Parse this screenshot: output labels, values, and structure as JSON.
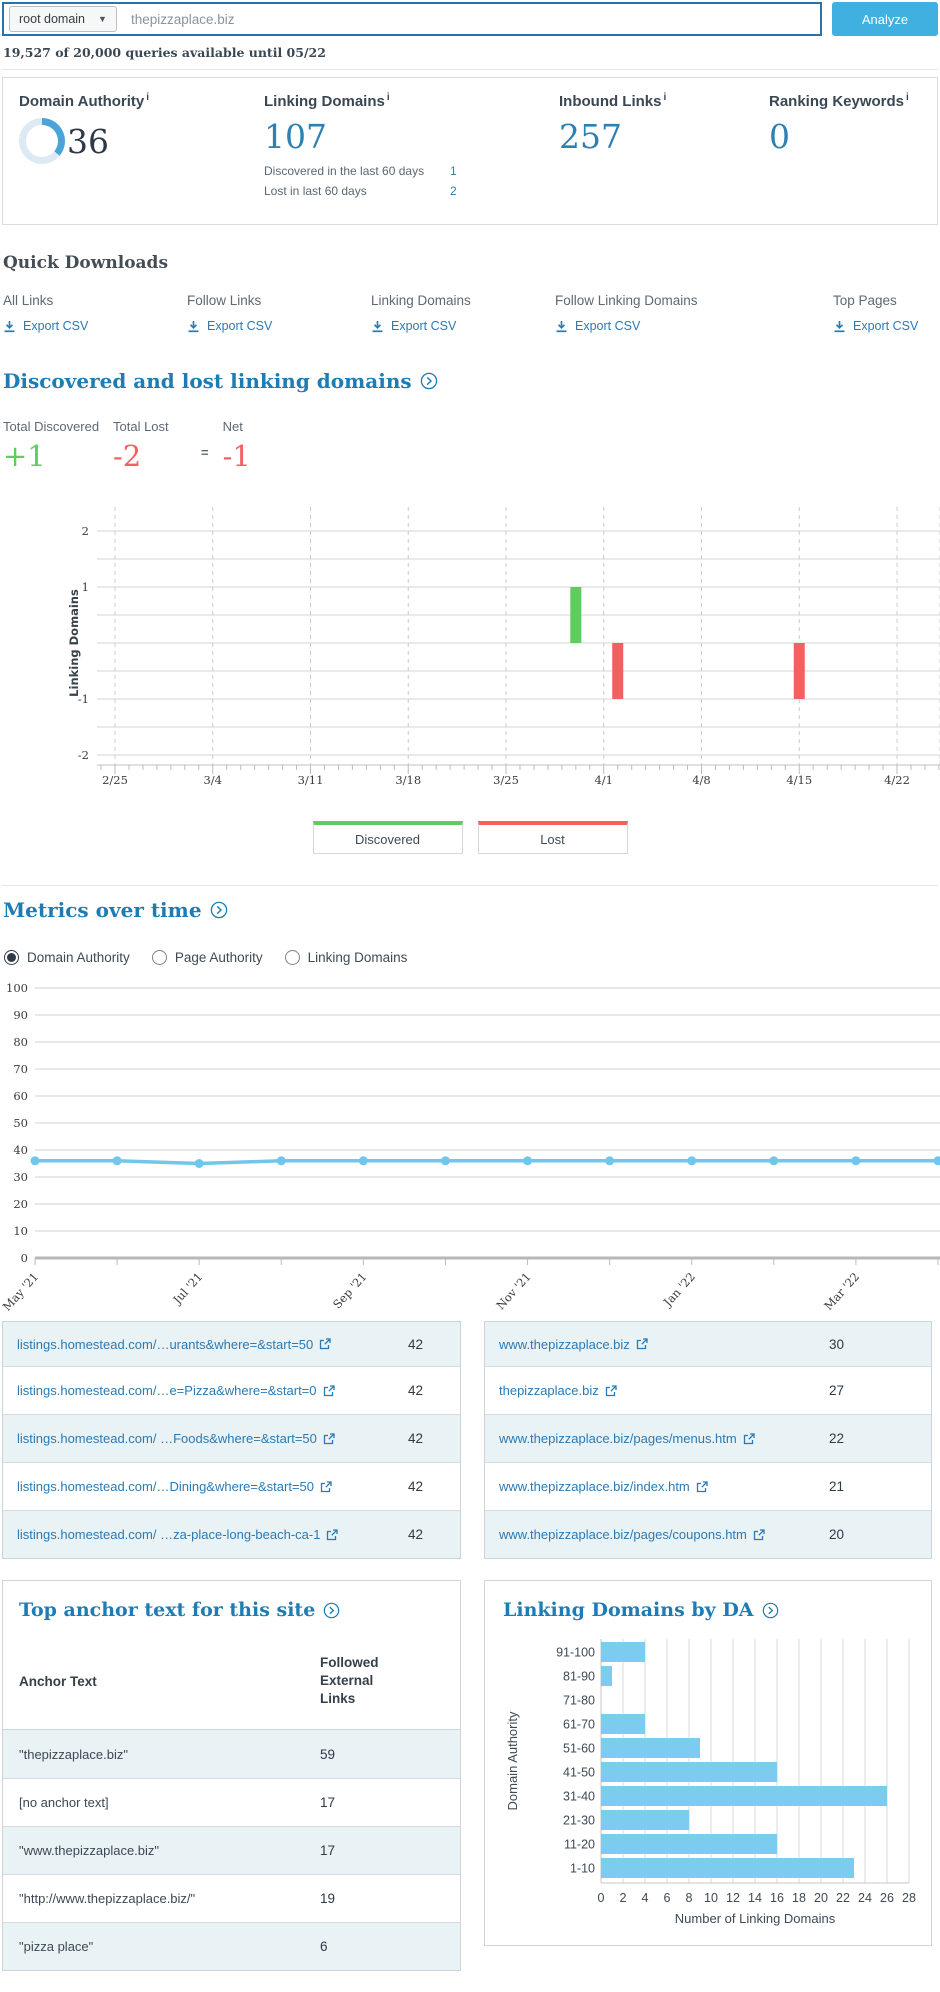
{
  "search": {
    "scope_label": "root domain",
    "query": "thepizzaplace.biz",
    "analyze_label": "Analyze",
    "queries_note": "19,527 of 20,000 queries available until 05/22"
  },
  "metrics": {
    "domain_authority": {
      "label": "Domain Authority",
      "info": "i",
      "value": "36"
    },
    "linking_domains": {
      "label": "Linking Domains",
      "info": "i",
      "value": "107",
      "sub_rows": [
        {
          "label": "Discovered in the last 60 days",
          "value": "1"
        },
        {
          "label": "Lost in last 60 days",
          "value": "2"
        }
      ]
    },
    "inbound_links": {
      "label": "Inbound Links",
      "info": "i",
      "value": "257"
    },
    "ranking_keywords": {
      "label": "Ranking Keywords",
      "info": "i",
      "value": "0"
    }
  },
  "quick_downloads": {
    "title": "Quick Downloads",
    "export_label": "Export CSV",
    "items": [
      {
        "label": "All Links"
      },
      {
        "label": "Follow Links"
      },
      {
        "label": "Linking Domains"
      },
      {
        "label": "Follow Linking Domains"
      },
      {
        "label": "Top Pages"
      }
    ]
  },
  "discovered_lost": {
    "title": "Discovered and lost linking domains",
    "stats": {
      "discovered": {
        "label": "Total Discovered",
        "value": "+1"
      },
      "lost": {
        "label": "Total Lost",
        "value": "-2"
      },
      "equals": "=",
      "net": {
        "label": "Net",
        "value": "-1"
      }
    },
    "legend": {
      "discovered": "Discovered",
      "lost": "Lost"
    }
  },
  "metrics_over_time": {
    "title": "Metrics over time",
    "radios": [
      {
        "label": "Domain Authority",
        "selected": true
      },
      {
        "label": "Page Authority",
        "selected": false
      },
      {
        "label": "Linking Domains",
        "selected": false
      }
    ]
  },
  "link_tables": {
    "left_rows": [
      {
        "url": "listings.homestead.com/…urants&where=&start=50",
        "value": "42"
      },
      {
        "url": "listings.homestead.com/…e=Pizza&where=&start=0",
        "value": "42"
      },
      {
        "url": "listings.homestead.com/ …Foods&where=&start=50",
        "value": "42"
      },
      {
        "url": "listings.homestead.com/…Dining&where=&start=50",
        "value": "42"
      },
      {
        "url": "listings.homestead.com/ …za-place-long-beach-ca-1",
        "value": "42"
      }
    ],
    "right_rows": [
      {
        "url": "www.thepizzaplace.biz",
        "value": "30"
      },
      {
        "url": "thepizzaplace.biz",
        "value": "27"
      },
      {
        "url": "www.thepizzaplace.biz/pages/menus.htm",
        "value": "22"
      },
      {
        "url": "www.thepizzaplace.biz/index.htm",
        "value": "21"
      },
      {
        "url": "www.thepizzaplace.biz/pages/coupons.htm",
        "value": "20"
      }
    ]
  },
  "anchor_text": {
    "title": "Top anchor text for this site",
    "col1": "Anchor Text",
    "col2": "Followed External Links",
    "rows": [
      {
        "text": "\"thepizzaplace.biz\"",
        "value": "59"
      },
      {
        "text": "[no anchor text]",
        "value": "17"
      },
      {
        "text": "\"www.thepizzaplace.biz\"",
        "value": "17"
      },
      {
        "text": "\"http://www.thepizzaplace.biz/\"",
        "value": "19"
      },
      {
        "text": "\"pizza place\"",
        "value": "6"
      }
    ]
  },
  "da_section": {
    "title": "Linking Domains by DA"
  },
  "colors": {
    "accent_blue": "#1d7cb4",
    "link_blue": "#2a7ab5",
    "metric_blue": "#2c80b4",
    "analyze_bg": "#3fb0e0",
    "search_border": "#2d71a6",
    "discovered_green": "#5ecc5e",
    "lost_red": "#f26060",
    "line_blue": "#70c6eb",
    "da_bar_blue": "#7bccee"
  },
  "chart_data": [
    {
      "id": "discovered-lost",
      "type": "bar",
      "title": "Discovered and lost linking domains",
      "ylabel": "Linking Domains",
      "ylim": [
        -2,
        2
      ],
      "grid": true,
      "x_tick_labels": [
        "2/25",
        "3/4",
        "3/11",
        "3/18",
        "3/25",
        "4/1",
        "4/8",
        "4/15",
        "4/22"
      ],
      "series": [
        {
          "name": "Discovered",
          "color": "#5ecc5e",
          "points": [
            {
              "date": "3/30",
              "day_offset": 33,
              "value": 1
            }
          ]
        },
        {
          "name": "Lost",
          "color": "#f26060",
          "points": [
            {
              "date": "4/2",
              "day_offset": 36,
              "value": -1
            },
            {
              "date": "4/15",
              "day_offset": 49,
              "value": -1
            }
          ]
        }
      ]
    },
    {
      "id": "metrics-over-time",
      "type": "line",
      "metric": "Domain Authority",
      "ylim": [
        0,
        100
      ],
      "y_tick_step": 10,
      "grid": true,
      "x": [
        "May '21",
        "Jun '21",
        "Jul '21",
        "Aug '21",
        "Sep '21",
        "Oct '21",
        "Nov '21",
        "Dec '21",
        "Jan '22",
        "Feb '22",
        "Mar '22",
        "Apr '22"
      ],
      "x_labels_shown": [
        "May '21",
        "Jul '21",
        "Sep '21",
        "Nov '21",
        "Jan '22",
        "Mar '22"
      ],
      "values": [
        36,
        36,
        35,
        36,
        36,
        36,
        36,
        36,
        36,
        36,
        36,
        36
      ],
      "color": "#70c6eb"
    },
    {
      "id": "linking-domains-by-da",
      "type": "bar-horizontal",
      "title": "Linking Domains by DA",
      "categories": [
        "91-100",
        "81-90",
        "71-80",
        "61-70",
        "51-60",
        "41-50",
        "31-40",
        "21-30",
        "11-20",
        "1-10"
      ],
      "values": [
        4,
        1,
        0,
        4,
        9,
        16,
        26,
        8,
        16,
        23
      ],
      "xlabel": "Number of Linking Domains",
      "ylabel": "Domain Authority",
      "xlim": [
        0,
        28
      ],
      "x_tick_step": 2,
      "color": "#7bccee"
    }
  ]
}
